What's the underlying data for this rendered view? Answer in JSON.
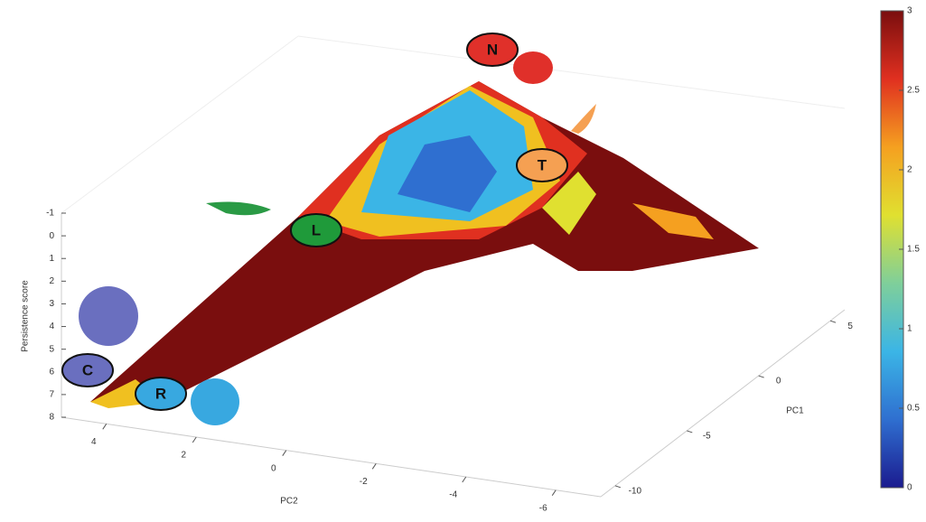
{
  "chart_data": {
    "type": "surface",
    "zlabel": "Persistence score",
    "xlabel": "PC2",
    "ylabel": "PC1",
    "zlim": [
      8,
      -1
    ],
    "zticks": [
      -1,
      0,
      1,
      2,
      3,
      4,
      5,
      6,
      7,
      8
    ],
    "xlim": [
      5,
      -7
    ],
    "xticks": [
      4,
      2,
      0,
      -2,
      -4,
      -6
    ],
    "ylim": [
      -11,
      6
    ],
    "yticks": [
      -10,
      -5,
      0,
      5
    ],
    "colorlim": [
      0,
      3
    ],
    "colorticks": [
      0,
      0.5,
      1,
      1.5,
      2,
      2.5,
      3
    ],
    "colormap": [
      "#1b1b8f",
      "#2f6fd0",
      "#3bb5e6",
      "#7fcf9a",
      "#e0e030",
      "#f5a020",
      "#e03020",
      "#7a0e0e"
    ],
    "annotations": [
      {
        "text": "N",
        "color": "#e0302a"
      },
      {
        "text": "L",
        "color": "#1f9a3a"
      },
      {
        "text": "T",
        "color": "#f5a052"
      },
      {
        "text": "C",
        "color": "#6a6fbf"
      },
      {
        "text": "R",
        "color": "#38a8e0"
      }
    ]
  }
}
